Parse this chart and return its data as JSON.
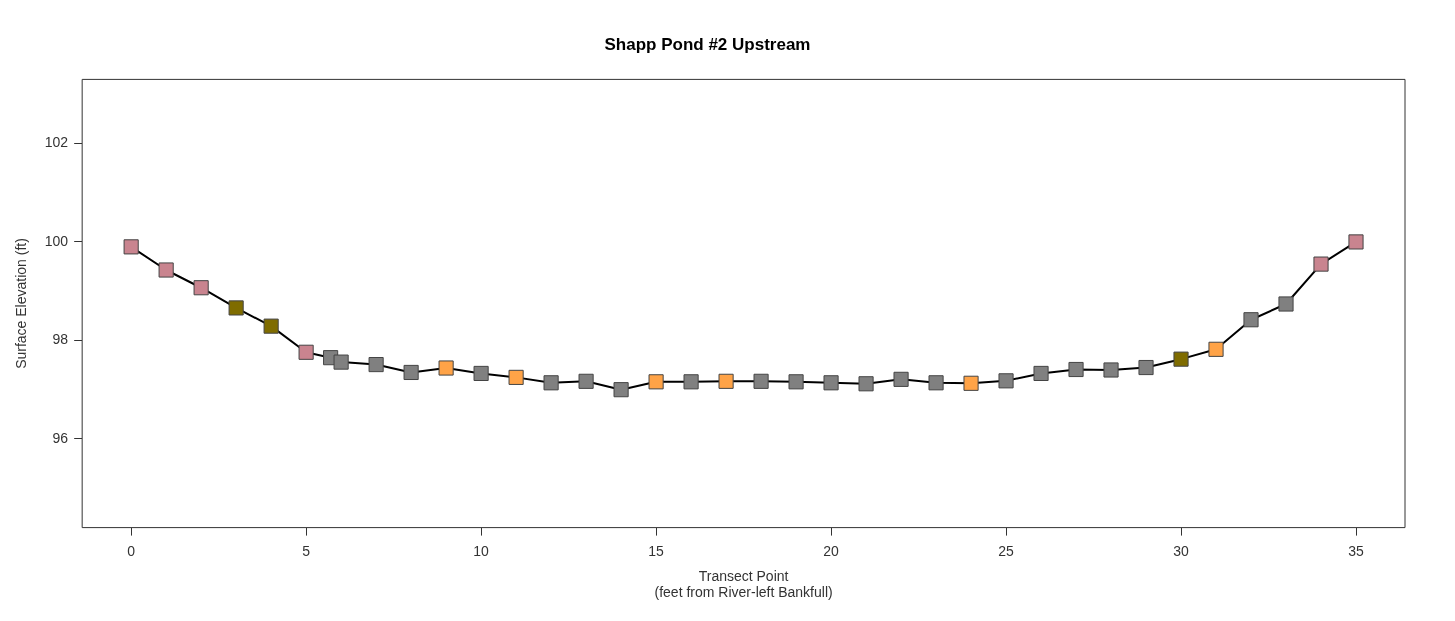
{
  "chart_data": {
    "type": "line",
    "title": "Shapp Pond #2 Upstream",
    "xlabel": "Transect Point\n(feet from River-left Bankfull)",
    "ylabel": "Surface Elevation (ft)",
    "xlim": [
      -1.4,
      36.4
    ],
    "xticks": [
      0,
      5,
      10,
      15,
      20,
      25,
      30,
      35
    ],
    "ylim": [
      94.2,
      103.3
    ],
    "yticks": [
      96,
      98,
      100,
      102
    ],
    "grid": false,
    "legend": false,
    "marker": "square",
    "line_style": "solid",
    "series": [
      {
        "color": "#000000",
        "x": [
          0,
          1,
          2,
          3,
          4,
          5,
          5.7,
          6,
          7,
          8,
          9,
          10,
          11,
          12,
          13,
          14,
          15,
          16,
          17,
          18,
          19,
          20,
          21,
          22,
          23,
          24,
          25,
          26,
          27,
          28,
          29,
          30,
          31,
          32,
          33,
          34,
          35
        ],
        "values": [
          99.9,
          99.43,
          99.07,
          98.66,
          98.29,
          97.76,
          97.65,
          97.56,
          97.51,
          97.35,
          97.44,
          97.33,
          97.25,
          97.14,
          97.17,
          97.0,
          97.16,
          97.16,
          97.17,
          97.17,
          97.16,
          97.14,
          97.12,
          97.21,
          97.14,
          97.13,
          97.18,
          97.33,
          97.41,
          97.4,
          97.45,
          97.62,
          97.82,
          98.42,
          98.74,
          99.55,
          100
        ],
        "colors": [
          "#c9848f",
          "#c9848f",
          "#c9848f",
          "#7f6c00",
          "#7f6c00",
          "#c9848f",
          "#808080",
          "#808080",
          "#808080",
          "#808080",
          "#ffa347",
          "#808080",
          "#ffa347",
          "#808080",
          "#808080",
          "#808080",
          "#ffa347",
          "#808080",
          "#ffa347",
          "#808080",
          "#808080",
          "#808080",
          "#808080",
          "#808080",
          "#808080",
          "#ffa347",
          "#808080",
          "#808080",
          "#808080",
          "#808080",
          "#808080",
          "#7f6c00",
          "#ffa347",
          "#808080",
          "#808080",
          "#c9848f",
          "#c9848f"
        ]
      }
    ]
  }
}
